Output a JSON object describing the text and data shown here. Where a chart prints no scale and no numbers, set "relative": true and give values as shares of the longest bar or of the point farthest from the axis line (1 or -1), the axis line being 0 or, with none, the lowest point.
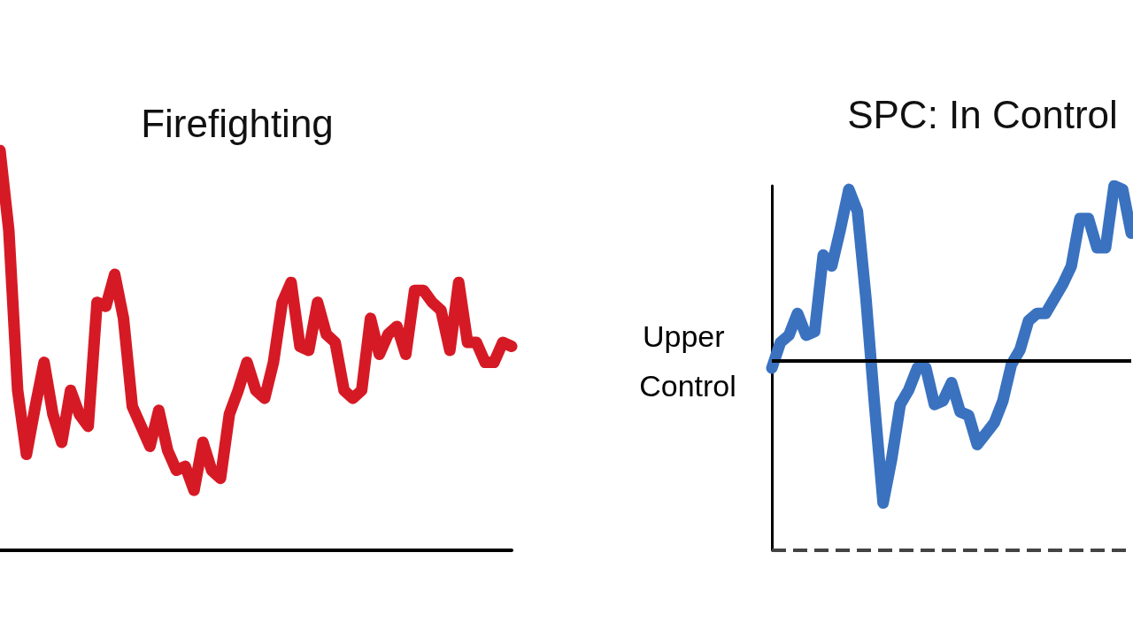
{
  "chart_data": [
    {
      "type": "line",
      "title": "Firefighting",
      "relative": true,
      "categories": [
        null,
        null,
        null,
        null,
        null,
        null,
        null,
        null,
        null,
        null,
        null,
        null,
        null,
        null,
        null,
        null,
        null,
        null,
        null,
        null,
        null,
        null,
        null,
        null,
        null,
        null,
        null,
        null,
        null,
        null,
        null,
        null,
        null,
        null,
        null,
        null,
        null,
        null,
        null,
        null,
        null,
        null,
        null,
        null,
        null,
        null,
        null,
        null,
        null,
        null,
        null,
        null,
        null,
        null,
        null,
        null,
        null,
        null,
        null
      ],
      "series": [
        {
          "color": "#d61a25",
          "values": [
            1.0,
            0.8,
            0.4,
            0.24,
            0.36,
            0.47,
            0.34,
            0.27,
            0.4,
            0.34,
            0.31,
            0.62,
            0.61,
            0.69,
            0.58,
            0.36,
            0.31,
            0.26,
            0.35,
            0.25,
            0.2,
            0.21,
            0.15,
            0.27,
            0.2,
            0.18,
            0.34,
            0.4,
            0.47,
            0.4,
            0.38,
            0.47,
            0.62,
            0.67,
            0.51,
            0.5,
            0.62,
            0.54,
            0.52,
            0.4,
            0.38,
            0.4,
            0.58,
            0.49,
            0.54,
            0.56,
            0.49,
            0.65,
            0.65,
            0.62,
            0.6,
            0.5,
            0.67,
            0.52,
            0.52,
            0.47,
            0.47,
            0.52,
            0.51
          ]
        }
      ],
      "tick_labels": false,
      "line_style": "solid"
    },
    {
      "type": "line",
      "title": "SPC: In Control",
      "relative": true,
      "categories": [
        null,
        null,
        null,
        null,
        null,
        null,
        null,
        null,
        null,
        null,
        null,
        null,
        null,
        null,
        null,
        null,
        null,
        null,
        null,
        null,
        null,
        null,
        null,
        null,
        null,
        null,
        null,
        null,
        null,
        null,
        null,
        null,
        null,
        null,
        null,
        null,
        null,
        null,
        null,
        null,
        null,
        null,
        null
      ],
      "series": [
        {
          "color": "#3a72c0",
          "values": [
            0.5,
            0.57,
            0.59,
            0.65,
            0.59,
            0.6,
            0.81,
            0.78,
            0.88,
            0.99,
            0.93,
            0.69,
            0.4,
            0.13,
            0.25,
            0.4,
            0.44,
            0.5,
            0.5,
            0.4,
            0.41,
            0.46,
            0.38,
            0.37,
            0.29,
            0.32,
            0.35,
            0.41,
            0.51,
            0.55,
            0.63,
            0.65,
            0.65,
            0.69,
            0.73,
            0.78,
            0.91,
            0.91,
            0.83,
            0.83,
            1.0,
            0.99,
            0.87
          ]
        }
      ],
      "ref_lines": [
        {
          "axis": "y",
          "value": 0.52,
          "label": "Upper Control",
          "color": "#000000",
          "line_style": "solid"
        },
        {
          "axis": "y",
          "value": 0,
          "label": null,
          "color": "#444444",
          "line_style": "dashed"
        }
      ],
      "tick_labels": false,
      "line_style": "solid"
    }
  ]
}
